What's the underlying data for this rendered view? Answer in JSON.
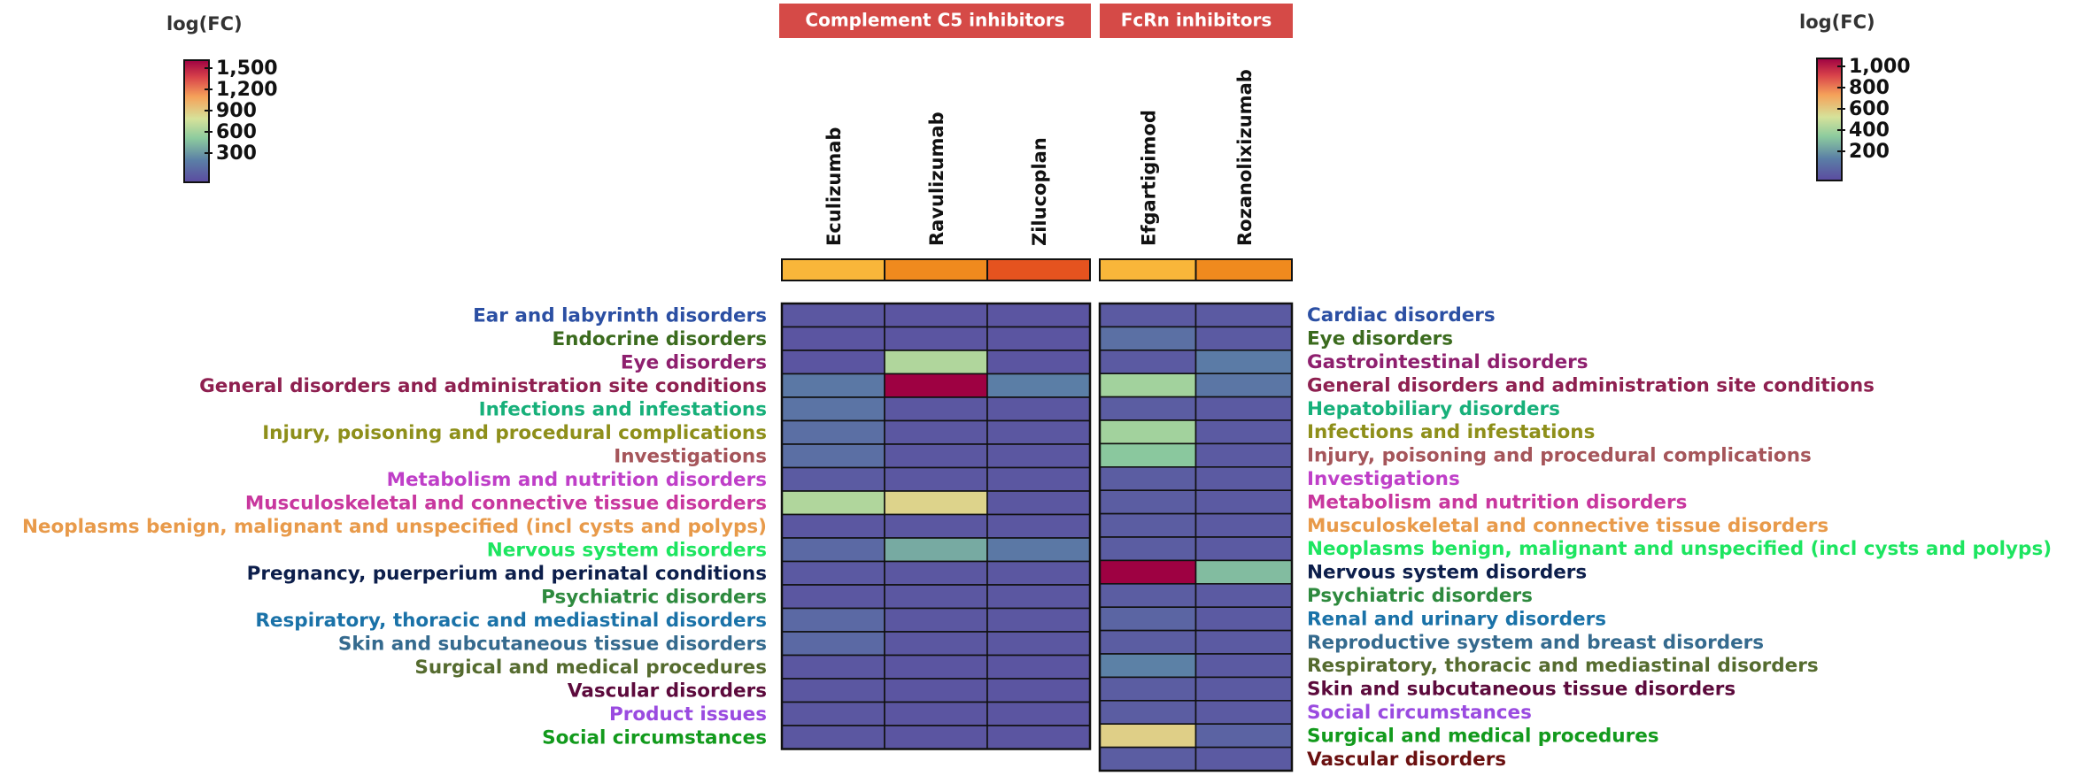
{
  "chart_data": [
    {
      "type": "heatmap",
      "group_label": "Complement C5 inhibitors",
      "legend": {
        "title": "log(FC)",
        "ticks": [
          "1,500",
          "1,200",
          "900",
          "600",
          "300"
        ],
        "placement": "top-left"
      },
      "columns": [
        "Eculizumab",
        "Ravulizumab",
        "Zilucoplan"
      ],
      "column_colors": [
        "#F9B63A",
        "#F08A1E",
        "#E5531F"
      ],
      "rows": [
        "Ear and labyrinth disorders",
        "Endocrine disorders",
        "Eye disorders",
        "General disorders and administration site conditions",
        "Infections and infestations",
        "Injury, poisoning and procedural complications",
        "Investigations",
        "Metabolism and nutrition disorders",
        "Musculoskeletal and connective tissue disorders",
        "Neoplasms benign, malignant and unspecified (incl cysts and polyps)",
        "Nervous system disorders",
        "Pregnancy, puerperium and perinatal conditions",
        "Psychiatric disorders",
        "Respiratory, thoracic and mediastinal disorders",
        "Skin and subcutaneous tissue disorders",
        "Surgical and medical procedures",
        "Vascular disorders",
        "Product issues",
        "Social circumstances"
      ],
      "row_label_colors": [
        "#2B4FA3",
        "#3B6B1E",
        "#8E1F6E",
        "#8E2050",
        "#17B07A",
        "#8E8F1A",
        "#A5555A",
        "#BF3FC8",
        "#C8379E",
        "#E89A4A",
        "#1DE560",
        "#0C1E4B",
        "#2E8A3E",
        "#1A72A8",
        "#356A8E",
        "#556B2F",
        "#5C0A3C",
        "#9A4BE0",
        "#129A1C"
      ],
      "values": [
        [
          70,
          60,
          60
        ],
        [
          60,
          60,
          60
        ],
        [
          60,
          700,
          60
        ],
        [
          250,
          1600,
          280
        ],
        [
          230,
          70,
          70
        ],
        [
          200,
          70,
          70
        ],
        [
          200,
          70,
          70
        ],
        [
          90,
          70,
          70
        ],
        [
          700,
          900,
          70
        ],
        [
          70,
          70,
          70
        ],
        [
          170,
          450,
          250
        ],
        [
          80,
          70,
          70
        ],
        [
          70,
          70,
          70
        ],
        [
          170,
          70,
          70
        ],
        [
          170,
          70,
          70
        ],
        [
          70,
          60,
          60
        ],
        [
          70,
          60,
          60
        ],
        [
          70,
          60,
          60
        ],
        [
          70,
          60,
          60
        ]
      ],
      "scale_max": 1600
    },
    {
      "type": "heatmap",
      "group_label": "FcRn inhibitors",
      "legend": {
        "title": "log(FC)",
        "ticks": [
          "1,000",
          "800",
          "600",
          "400",
          "200"
        ],
        "placement": "top-right"
      },
      "columns": [
        "Efgartigimod",
        "Rozanolixizumab"
      ],
      "column_colors": [
        "#F9B63A",
        "#F08A1E"
      ],
      "rows": [
        "Cardiac disorders",
        "Eye disorders",
        "Gastrointestinal disorders",
        "General disorders and administration site conditions",
        "Hepatobiliary disorders",
        "Infections and infestations",
        "Injury, poisoning and procedural complications",
        "Investigations",
        "Metabolism and nutrition disorders",
        "Musculoskeletal and connective tissue disorders",
        "Neoplasms benign, malignant and unspecified (incl cysts and polyps)",
        "Nervous system disorders",
        "Psychiatric disorders",
        "Renal and urinary disorders",
        "Reproductive system and breast disorders",
        "Respiratory, thoracic and mediastinal disorders",
        "Skin and subcutaneous tissue disorders",
        "Social circumstances",
        "Surgical and medical procedures",
        "Vascular disorders"
      ],
      "row_label_colors": [
        "#2B4FA3",
        "#3B6B1E",
        "#8E1F6E",
        "#8E2050",
        "#17B07A",
        "#8E8F1A",
        "#A5555A",
        "#BF3FC8",
        "#C8379E",
        "#E89A4A",
        "#1DE560",
        "#0C1E4B",
        "#2E8A3E",
        "#1A72A8",
        "#356A8E",
        "#556B2F",
        "#5C0A3C",
        "#9A4BE0",
        "#129A1C",
        "#6A1010"
      ],
      "values": [
        [
          60,
          60
        ],
        [
          140,
          60
        ],
        [
          60,
          180
        ],
        [
          440,
          160
        ],
        [
          70,
          60
        ],
        [
          440,
          60
        ],
        [
          380,
          60
        ],
        [
          70,
          60
        ],
        [
          70,
          60
        ],
        [
          70,
          60
        ],
        [
          70,
          60
        ],
        [
          1080,
          350
        ],
        [
          70,
          60
        ],
        [
          100,
          60
        ],
        [
          70,
          60
        ],
        [
          200,
          60
        ],
        [
          70,
          60
        ],
        [
          70,
          60
        ],
        [
          620,
          90
        ],
        [
          70,
          60
        ]
      ],
      "scale_max": 1080
    }
  ]
}
